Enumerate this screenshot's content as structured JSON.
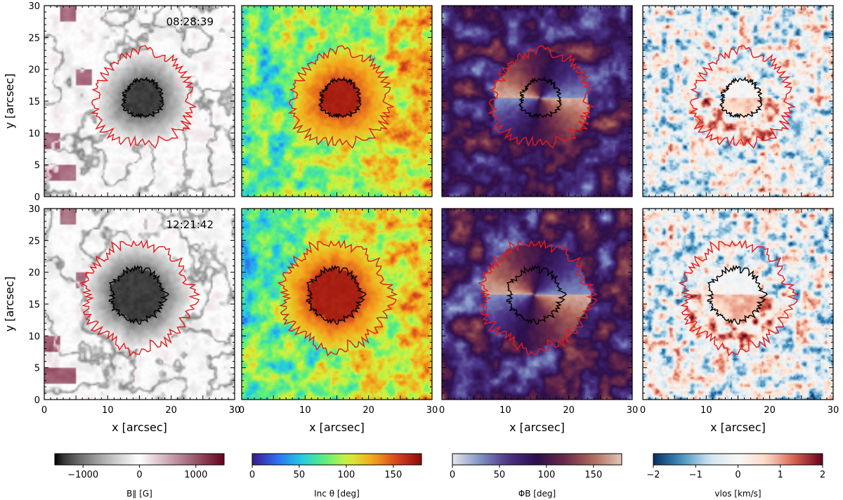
{
  "chart_data": {
    "type": "heatmap",
    "title": "",
    "xlabel": "x [arcsec]",
    "ylabel": "y [arcsec]",
    "xlim": [
      0,
      30
    ],
    "ylim": [
      0,
      30
    ],
    "x_ticks": [
      0,
      10,
      20,
      30
    ],
    "y_ticks": [
      0,
      5,
      10,
      15,
      20,
      25,
      30
    ],
    "rows": [
      {
        "time": "08:28:39"
      },
      {
        "time": "12:21:42"
      }
    ],
    "columns": [
      {
        "quantity": "B_parallel",
        "colorbar_label": "B∥ [G]",
        "cmap": "gray-white-red",
        "colors": [
          "#000000",
          "#ffffff",
          "#67001f"
        ],
        "range": [
          -1500,
          1500
        ],
        "ticks": [
          -1000,
          0,
          1000
        ]
      },
      {
        "quantity": "inclination",
        "colorbar_label": "Inc θ [deg]",
        "cmap": "jet-like",
        "colors": [
          "#3b1a8a",
          "#2f6cf0",
          "#22c9e8",
          "#5cf07a",
          "#d6f23a",
          "#f5a31b",
          "#d6411f",
          "#8a0a0a"
        ],
        "range": [
          0,
          180
        ],
        "ticks": [
          0,
          50,
          100,
          150
        ]
      },
      {
        "quantity": "azimuth",
        "colorbar_label": "ΦB [deg]",
        "cmap": "twilight-like",
        "colors": [
          "#e6e6ea",
          "#7f8fc4",
          "#4a3184",
          "#2d0f4a",
          "#6b2a4a",
          "#b06a5c",
          "#e0c6b5"
        ],
        "range": [
          0,
          180
        ],
        "ticks": [
          0,
          50,
          100,
          150
        ]
      },
      {
        "quantity": "vlos",
        "colorbar_label": "vlos [km/s]",
        "cmap": "RdBu_r",
        "colors": [
          "#053061",
          "#4393c3",
          "#d1e5f0",
          "#f7f7f7",
          "#fddbc7",
          "#d6604d",
          "#67001f"
        ],
        "range": [
          -2,
          2
        ],
        "ticks": [
          -2,
          -1,
          0,
          1,
          2
        ]
      }
    ],
    "contours": [
      {
        "name": "penumbra boundary",
        "color": "#e41a1c"
      },
      {
        "name": "umbra boundary",
        "color": "#000000"
      }
    ]
  }
}
